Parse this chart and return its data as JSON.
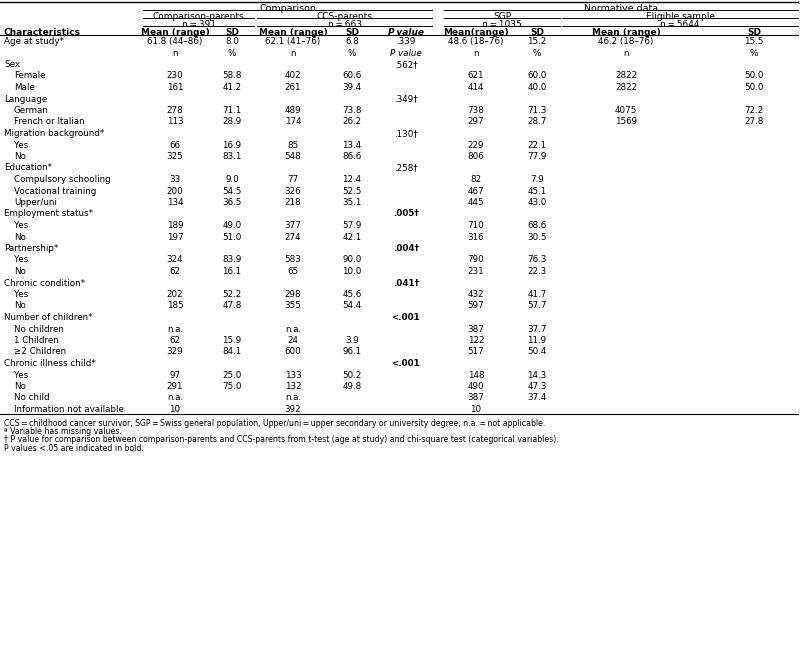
{
  "footnotes": [
    "CCS = childhood cancer survivor, SGP = Swiss general population, Upper/uni = upper secondary or university degree, n.a. = not applicable.",
    "ª Variable has missing values.",
    "† P value for comparison between comparison-parents and CCS-parents from t-test (age at study) and chi-square test (categorical variables).",
    "P values <.05 are indicated in bold."
  ],
  "rows": [
    {
      "label": "Age at study*",
      "indent": 0,
      "section": false,
      "cols": [
        "61.8 (44–86)",
        "8.0",
        "62.1 (41–76)",
        "6.8",
        ".339",
        "48.6 (18–76)",
        "15.2",
        "46.2 (18–76)",
        "15.5"
      ]
    },
    {
      "label": "",
      "indent": 0,
      "section": false,
      "cols": [
        "n",
        "%",
        "n",
        "%",
        "P value",
        "n",
        "%",
        "n",
        "%"
      ]
    },
    {
      "label": "Sex",
      "indent": 0,
      "section": true,
      "cols": [
        "",
        "",
        "",
        "",
        ".562†",
        "",
        "",
        "",
        ""
      ]
    },
    {
      "label": "Female",
      "indent": 1,
      "section": false,
      "cols": [
        "230",
        "58.8",
        "402",
        "60.6",
        "",
        "621",
        "60.0",
        "2822",
        "50.0"
      ]
    },
    {
      "label": "Male",
      "indent": 1,
      "section": false,
      "cols": [
        "161",
        "41.2",
        "261",
        "39.4",
        "",
        "414",
        "40.0",
        "2822",
        "50.0"
      ]
    },
    {
      "label": "Language",
      "indent": 0,
      "section": true,
      "cols": [
        "",
        "",
        "",
        "",
        ".349†",
        "",
        "",
        "",
        ""
      ]
    },
    {
      "label": "German",
      "indent": 1,
      "section": false,
      "cols": [
        "278",
        "71.1",
        "489",
        "73.8",
        "",
        "738",
        "71.3",
        "4075",
        "72.2"
      ]
    },
    {
      "label": "French or Italian",
      "indent": 1,
      "section": false,
      "cols": [
        "113",
        "28.9",
        "174",
        "26.2",
        "",
        "297",
        "28.7",
        "1569",
        "27.8"
      ]
    },
    {
      "label": "Migration background*",
      "indent": 0,
      "section": true,
      "cols": [
        "",
        "",
        "",
        "",
        ".130†",
        "",
        "",
        "",
        ""
      ]
    },
    {
      "label": "Yes",
      "indent": 1,
      "section": false,
      "cols": [
        "66",
        "16.9",
        "85",
        "13.4",
        "",
        "229",
        "22.1",
        "",
        ""
      ]
    },
    {
      "label": "No",
      "indent": 1,
      "section": false,
      "cols": [
        "325",
        "83.1",
        "548",
        "86.6",
        "",
        "806",
        "77.9",
        "",
        ""
      ]
    },
    {
      "label": "Education*",
      "indent": 0,
      "section": true,
      "cols": [
        "",
        "",
        "",
        "",
        ".258†",
        "",
        "",
        "",
        ""
      ]
    },
    {
      "label": "Compulsory schooling",
      "indent": 1,
      "section": false,
      "cols": [
        "33",
        "9.0",
        "77",
        "12.4",
        "",
        "82",
        "7.9",
        "",
        ""
      ]
    },
    {
      "label": "Vocational training",
      "indent": 1,
      "section": false,
      "cols": [
        "200",
        "54.5",
        "326",
        "52.5",
        "",
        "467",
        "45.1",
        "",
        ""
      ]
    },
    {
      "label": "Upper/uni",
      "indent": 1,
      "section": false,
      "cols": [
        "134",
        "36.5",
        "218",
        "35.1",
        "",
        "445",
        "43.0",
        "",
        ""
      ]
    },
    {
      "label": "Employment status*",
      "indent": 0,
      "section": true,
      "cols": [
        "",
        "",
        "",
        "",
        ".005†",
        "",
        "",
        "",
        ""
      ]
    },
    {
      "label": "Yes",
      "indent": 1,
      "section": false,
      "cols": [
        "189",
        "49.0",
        "377",
        "57.9",
        "",
        "710",
        "68.6",
        "",
        ""
      ]
    },
    {
      "label": "No",
      "indent": 1,
      "section": false,
      "cols": [
        "197",
        "51.0",
        "274",
        "42.1",
        "",
        "316",
        "30.5",
        "",
        ""
      ]
    },
    {
      "label": "Partnership*",
      "indent": 0,
      "section": true,
      "cols": [
        "",
        "",
        "",
        "",
        ".004†",
        "",
        "",
        "",
        ""
      ]
    },
    {
      "label": "Yes",
      "indent": 1,
      "section": false,
      "cols": [
        "324",
        "83.9",
        "583",
        "90.0",
        "",
        "790",
        "76.3",
        "",
        ""
      ]
    },
    {
      "label": "No",
      "indent": 1,
      "section": false,
      "cols": [
        "62",
        "16.1",
        "65",
        "10.0",
        "",
        "231",
        "22.3",
        "",
        ""
      ]
    },
    {
      "label": "Chronic condition*",
      "indent": 0,
      "section": true,
      "cols": [
        "",
        "",
        "",
        "",
        ".041†",
        "",
        "",
        "",
        ""
      ]
    },
    {
      "label": "Yes",
      "indent": 1,
      "section": false,
      "cols": [
        "202",
        "52.2",
        "298",
        "45.6",
        "",
        "432",
        "41.7",
        "",
        ""
      ]
    },
    {
      "label": "No",
      "indent": 1,
      "section": false,
      "cols": [
        "185",
        "47.8",
        "355",
        "54.4",
        "",
        "597",
        "57.7",
        "",
        ""
      ]
    },
    {
      "label": "Number of children*",
      "indent": 0,
      "section": true,
      "cols": [
        "",
        "",
        "",
        "",
        "<.001",
        "",
        "",
        "",
        ""
      ]
    },
    {
      "label": "No children",
      "indent": 1,
      "section": false,
      "cols": [
        "n.a.",
        "",
        "n.a.",
        "",
        "",
        "387",
        "37.7",
        "",
        ""
      ]
    },
    {
      "label": "1 Children",
      "indent": 1,
      "section": false,
      "cols": [
        "62",
        "15.9",
        "24",
        "3.9",
        "",
        "122",
        "11.9",
        "",
        ""
      ]
    },
    {
      "label": "≥2 Children",
      "indent": 1,
      "section": false,
      "cols": [
        "329",
        "84.1",
        "600",
        "96.1",
        "",
        "517",
        "50.4",
        "",
        ""
      ]
    },
    {
      "label": "Chronic illness child*",
      "indent": 0,
      "section": true,
      "cols": [
        "",
        "",
        "",
        "",
        "<.001",
        "",
        "",
        "",
        ""
      ]
    },
    {
      "label": "Yes",
      "indent": 1,
      "section": false,
      "cols": [
        "97",
        "25.0",
        "133",
        "50.2",
        "",
        "148",
        "14.3",
        "",
        ""
      ]
    },
    {
      "label": "No",
      "indent": 1,
      "section": false,
      "cols": [
        "291",
        "75.0",
        "132",
        "49.8",
        "",
        "490",
        "47.3",
        "",
        ""
      ]
    },
    {
      "label": "No child",
      "indent": 1,
      "section": false,
      "cols": [
        "n.a.",
        "",
        "n.a.",
        "",
        "",
        "387",
        "37.4",
        "",
        ""
      ]
    },
    {
      "label": "Information not available",
      "indent": 1,
      "section": false,
      "cols": [
        "10",
        "",
        "392",
        "",
        "",
        "10",
        "",
        "",
        ""
      ]
    }
  ],
  "bold_pvalues": [
    ".005†",
    ".004†",
    ".041†",
    "<.001"
  ]
}
